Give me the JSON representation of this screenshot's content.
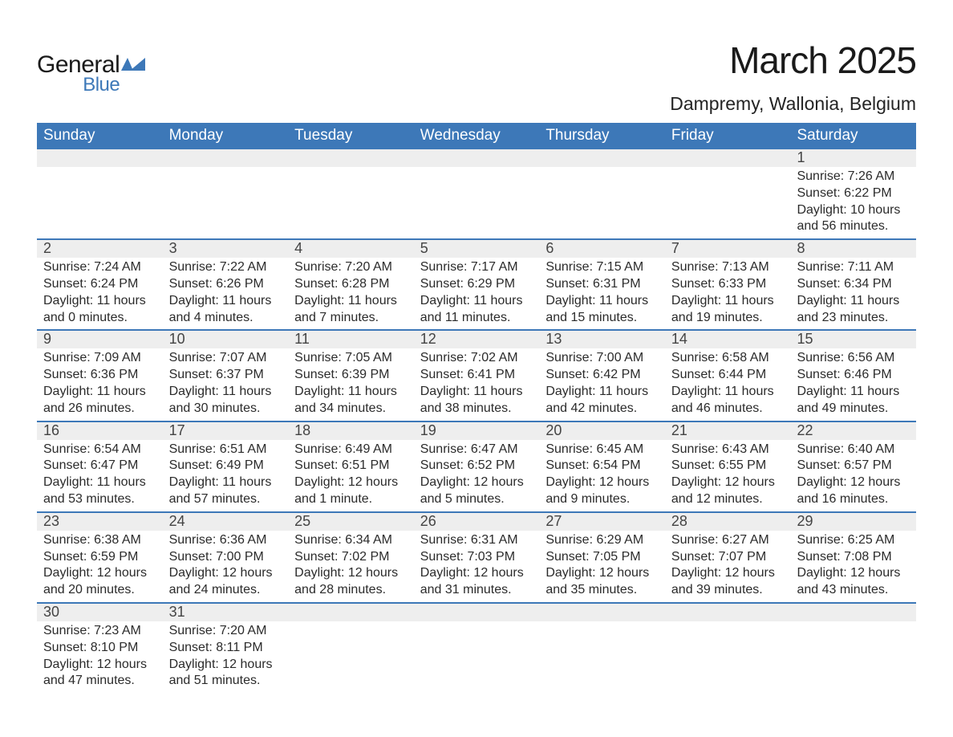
{
  "logo": {
    "general": "General",
    "blue": "Blue",
    "mark_color": "#3d78b8"
  },
  "title": "March 2025",
  "location": "Dampremy, Wallonia, Belgium",
  "header_bg": "#3d78b8",
  "weekdays": [
    "Sunday",
    "Monday",
    "Tuesday",
    "Wednesday",
    "Thursday",
    "Friday",
    "Saturday"
  ],
  "weeks": [
    [
      {
        "empty": true
      },
      {
        "empty": true
      },
      {
        "empty": true
      },
      {
        "empty": true
      },
      {
        "empty": true
      },
      {
        "empty": true
      },
      {
        "day": "1",
        "sunrise": "Sunrise: 7:26 AM",
        "sunset": "Sunset: 6:22 PM",
        "daylight1": "Daylight: 10 hours",
        "daylight2": "and 56 minutes."
      }
    ],
    [
      {
        "day": "2",
        "sunrise": "Sunrise: 7:24 AM",
        "sunset": "Sunset: 6:24 PM",
        "daylight1": "Daylight: 11 hours",
        "daylight2": "and 0 minutes."
      },
      {
        "day": "3",
        "sunrise": "Sunrise: 7:22 AM",
        "sunset": "Sunset: 6:26 PM",
        "daylight1": "Daylight: 11 hours",
        "daylight2": "and 4 minutes."
      },
      {
        "day": "4",
        "sunrise": "Sunrise: 7:20 AM",
        "sunset": "Sunset: 6:28 PM",
        "daylight1": "Daylight: 11 hours",
        "daylight2": "and 7 minutes."
      },
      {
        "day": "5",
        "sunrise": "Sunrise: 7:17 AM",
        "sunset": "Sunset: 6:29 PM",
        "daylight1": "Daylight: 11 hours",
        "daylight2": "and 11 minutes."
      },
      {
        "day": "6",
        "sunrise": "Sunrise: 7:15 AM",
        "sunset": "Sunset: 6:31 PM",
        "daylight1": "Daylight: 11 hours",
        "daylight2": "and 15 minutes."
      },
      {
        "day": "7",
        "sunrise": "Sunrise: 7:13 AM",
        "sunset": "Sunset: 6:33 PM",
        "daylight1": "Daylight: 11 hours",
        "daylight2": "and 19 minutes."
      },
      {
        "day": "8",
        "sunrise": "Sunrise: 7:11 AM",
        "sunset": "Sunset: 6:34 PM",
        "daylight1": "Daylight: 11 hours",
        "daylight2": "and 23 minutes."
      }
    ],
    [
      {
        "day": "9",
        "sunrise": "Sunrise: 7:09 AM",
        "sunset": "Sunset: 6:36 PM",
        "daylight1": "Daylight: 11 hours",
        "daylight2": "and 26 minutes."
      },
      {
        "day": "10",
        "sunrise": "Sunrise: 7:07 AM",
        "sunset": "Sunset: 6:37 PM",
        "daylight1": "Daylight: 11 hours",
        "daylight2": "and 30 minutes."
      },
      {
        "day": "11",
        "sunrise": "Sunrise: 7:05 AM",
        "sunset": "Sunset: 6:39 PM",
        "daylight1": "Daylight: 11 hours",
        "daylight2": "and 34 minutes."
      },
      {
        "day": "12",
        "sunrise": "Sunrise: 7:02 AM",
        "sunset": "Sunset: 6:41 PM",
        "daylight1": "Daylight: 11 hours",
        "daylight2": "and 38 minutes."
      },
      {
        "day": "13",
        "sunrise": "Sunrise: 7:00 AM",
        "sunset": "Sunset: 6:42 PM",
        "daylight1": "Daylight: 11 hours",
        "daylight2": "and 42 minutes."
      },
      {
        "day": "14",
        "sunrise": "Sunrise: 6:58 AM",
        "sunset": "Sunset: 6:44 PM",
        "daylight1": "Daylight: 11 hours",
        "daylight2": "and 46 minutes."
      },
      {
        "day": "15",
        "sunrise": "Sunrise: 6:56 AM",
        "sunset": "Sunset: 6:46 PM",
        "daylight1": "Daylight: 11 hours",
        "daylight2": "and 49 minutes."
      }
    ],
    [
      {
        "day": "16",
        "sunrise": "Sunrise: 6:54 AM",
        "sunset": "Sunset: 6:47 PM",
        "daylight1": "Daylight: 11 hours",
        "daylight2": "and 53 minutes."
      },
      {
        "day": "17",
        "sunrise": "Sunrise: 6:51 AM",
        "sunset": "Sunset: 6:49 PM",
        "daylight1": "Daylight: 11 hours",
        "daylight2": "and 57 minutes."
      },
      {
        "day": "18",
        "sunrise": "Sunrise: 6:49 AM",
        "sunset": "Sunset: 6:51 PM",
        "daylight1": "Daylight: 12 hours",
        "daylight2": "and 1 minute."
      },
      {
        "day": "19",
        "sunrise": "Sunrise: 6:47 AM",
        "sunset": "Sunset: 6:52 PM",
        "daylight1": "Daylight: 12 hours",
        "daylight2": "and 5 minutes."
      },
      {
        "day": "20",
        "sunrise": "Sunrise: 6:45 AM",
        "sunset": "Sunset: 6:54 PM",
        "daylight1": "Daylight: 12 hours",
        "daylight2": "and 9 minutes."
      },
      {
        "day": "21",
        "sunrise": "Sunrise: 6:43 AM",
        "sunset": "Sunset: 6:55 PM",
        "daylight1": "Daylight: 12 hours",
        "daylight2": "and 12 minutes."
      },
      {
        "day": "22",
        "sunrise": "Sunrise: 6:40 AM",
        "sunset": "Sunset: 6:57 PM",
        "daylight1": "Daylight: 12 hours",
        "daylight2": "and 16 minutes."
      }
    ],
    [
      {
        "day": "23",
        "sunrise": "Sunrise: 6:38 AM",
        "sunset": "Sunset: 6:59 PM",
        "daylight1": "Daylight: 12 hours",
        "daylight2": "and 20 minutes."
      },
      {
        "day": "24",
        "sunrise": "Sunrise: 6:36 AM",
        "sunset": "Sunset: 7:00 PM",
        "daylight1": "Daylight: 12 hours",
        "daylight2": "and 24 minutes."
      },
      {
        "day": "25",
        "sunrise": "Sunrise: 6:34 AM",
        "sunset": "Sunset: 7:02 PM",
        "daylight1": "Daylight: 12 hours",
        "daylight2": "and 28 minutes."
      },
      {
        "day": "26",
        "sunrise": "Sunrise: 6:31 AM",
        "sunset": "Sunset: 7:03 PM",
        "daylight1": "Daylight: 12 hours",
        "daylight2": "and 31 minutes."
      },
      {
        "day": "27",
        "sunrise": "Sunrise: 6:29 AM",
        "sunset": "Sunset: 7:05 PM",
        "daylight1": "Daylight: 12 hours",
        "daylight2": "and 35 minutes."
      },
      {
        "day": "28",
        "sunrise": "Sunrise: 6:27 AM",
        "sunset": "Sunset: 7:07 PM",
        "daylight1": "Daylight: 12 hours",
        "daylight2": "and 39 minutes."
      },
      {
        "day": "29",
        "sunrise": "Sunrise: 6:25 AM",
        "sunset": "Sunset: 7:08 PM",
        "daylight1": "Daylight: 12 hours",
        "daylight2": "and 43 minutes."
      }
    ],
    [
      {
        "day": "30",
        "sunrise": "Sunrise: 7:23 AM",
        "sunset": "Sunset: 8:10 PM",
        "daylight1": "Daylight: 12 hours",
        "daylight2": "and 47 minutes."
      },
      {
        "day": "31",
        "sunrise": "Sunrise: 7:20 AM",
        "sunset": "Sunset: 8:11 PM",
        "daylight1": "Daylight: 12 hours",
        "daylight2": "and 51 minutes."
      },
      {
        "empty": true
      },
      {
        "empty": true
      },
      {
        "empty": true
      },
      {
        "empty": true
      },
      {
        "empty": true
      }
    ]
  ]
}
